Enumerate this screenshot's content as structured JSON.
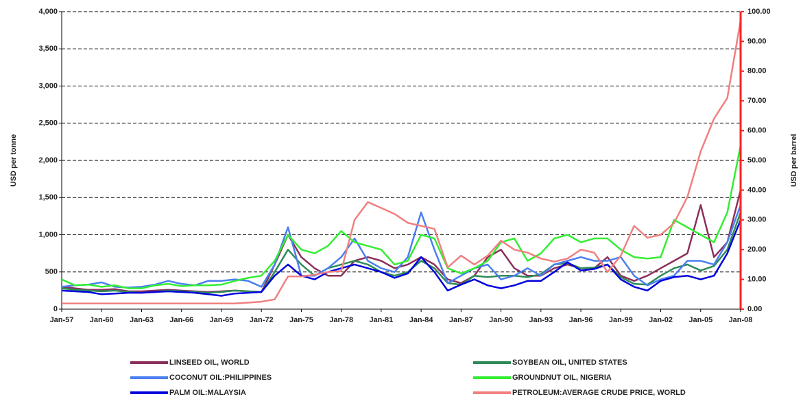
{
  "chart_data": {
    "type": "line",
    "ylabel": "USD per tonne",
    "y2label": "USD per barrel",
    "categories": [
      "Jan-57",
      null,
      null,
      "Jan-60",
      null,
      null,
      "Jan-63",
      null,
      null,
      "Jan-66",
      null,
      null,
      "Jan-69",
      null,
      null,
      "Jan-72",
      null,
      null,
      "Jan-75",
      null,
      null,
      "Jan-78",
      null,
      null,
      "Jan-81",
      null,
      null,
      "Jan-84",
      null,
      null,
      "Jan-87",
      null,
      null,
      "Jan-90",
      null,
      null,
      "Jan-93",
      null,
      null,
      "Jan-96",
      null,
      null,
      "Jan-99",
      null,
      null,
      "Jan-02",
      null,
      null,
      "Jan-05",
      null,
      null,
      "Jan-08"
    ],
    "ylim": [
      0,
      4000
    ],
    "yticks": [
      0,
      500,
      {
        "value": 1000,
        "label": "1,000"
      },
      {
        "value": 1500,
        "label": "1,500"
      },
      {
        "value": 2000,
        "label": "2,000"
      },
      {
        "value": 2500,
        "label": "2,500"
      },
      {
        "value": 3000,
        "label": "3,000"
      },
      {
        "value": 3500,
        "label": "3,500"
      },
      {
        "value": 4000,
        "label": "4,000"
      }
    ],
    "y2lim": [
      0,
      100
    ],
    "y2ticks": [
      {
        "value": 0,
        "label": "0.00"
      },
      {
        "value": 10,
        "label": "10.00"
      },
      {
        "value": 20,
        "label": "20.00"
      },
      {
        "value": 30,
        "label": "30.00"
      },
      {
        "value": 40,
        "label": "40.00"
      },
      {
        "value": 50,
        "label": "50.00"
      },
      {
        "value": 60,
        "label": "60.00"
      },
      {
        "value": 70,
        "label": "70.00"
      },
      {
        "value": 80,
        "label": "80.00"
      },
      {
        "value": 90,
        "label": "90.00"
      },
      {
        "value": 100,
        "label": "100.00"
      }
    ],
    "y2color": "#ff2020",
    "grid": true,
    "legend": "bottom",
    "series": [
      {
        "name": "LINSEED OIL, WORLD",
        "color": "#8b2f5a",
        "values": [
          300,
          280,
          260,
          260,
          270,
          240,
          240,
          250,
          260,
          250,
          240,
          230,
          240,
          250,
          240,
          230,
          600,
          1000,
          700,
          550,
          450,
          450,
          650,
          700,
          650,
          550,
          600,
          700,
          600,
          400,
          350,
          450,
          700,
          800,
          550,
          450,
          450,
          550,
          600,
          550,
          550,
          700,
          450,
          380,
          450,
          550,
          650,
          750,
          1400,
          700,
          900,
          1600
        ]
      },
      {
        "name": "SOYBEAN OIL, UNITED STATES",
        "color": "#2e8b57",
        "values": [
          280,
          260,
          250,
          240,
          250,
          230,
          220,
          230,
          250,
          240,
          230,
          220,
          230,
          250,
          240,
          230,
          500,
          800,
          600,
          450,
          550,
          600,
          650,
          600,
          500,
          450,
          500,
          650,
          550,
          350,
          330,
          450,
          430,
          450,
          450,
          430,
          470,
          600,
          620,
          550,
          560,
          600,
          430,
          340,
          330,
          450,
          550,
          600,
          520,
          580,
          800,
          1300
        ]
      },
      {
        "name": "COCONUT OIL:PHILIPPINES",
        "color": "#4a7ff0",
        "values": [
          300,
          320,
          330,
          360,
          300,
          290,
          300,
          330,
          380,
          340,
          320,
          380,
          380,
          400,
          380,
          300,
          600,
          1100,
          450,
          450,
          550,
          700,
          950,
          650,
          550,
          500,
          700,
          1300,
          800,
          350,
          450,
          550,
          600,
          400,
          450,
          550,
          450,
          600,
          650,
          700,
          650,
          650,
          700,
          450,
          320,
          400,
          450,
          650,
          650,
          600,
          900,
          1400
        ]
      },
      {
        "name": "GROUNDNUT OIL, NIGERIA",
        "color": "#33ee33",
        "values": [
          400,
          320,
          330,
          300,
          320,
          280,
          280,
          320,
          340,
          310,
          320,
          320,
          330,
          380,
          420,
          450,
          650,
          1000,
          800,
          750,
          850,
          1050,
          900,
          850,
          800,
          600,
          650,
          1000,
          950,
          550,
          480,
          550,
          650,
          900,
          950,
          650,
          750,
          950,
          1000,
          900,
          950,
          950,
          800,
          700,
          680,
          700,
          1200,
          1100,
          1000,
          900,
          1300,
          2200
        ]
      },
      {
        "name": "PALM OIL:MALAYSIA",
        "color": "#0000dd",
        "values": [
          250,
          240,
          230,
          200,
          210,
          220,
          220,
          230,
          240,
          230,
          220,
          200,
          180,
          210,
          220,
          230,
          450,
          600,
          450,
          400,
          500,
          550,
          600,
          550,
          500,
          420,
          480,
          700,
          500,
          250,
          330,
          400,
          320,
          280,
          320,
          380,
          380,
          500,
          630,
          520,
          540,
          600,
          400,
          300,
          250,
          380,
          430,
          450,
          400,
          450,
          750,
          1200
        ]
      },
      {
        "name": "PETROLEUM:AVERAGE CRUDE PRICE, WORLD",
        "color": "#f08080",
        "axis": "y2",
        "values": [
          1.9,
          1.9,
          1.9,
          1.9,
          1.9,
          1.9,
          1.9,
          1.9,
          1.9,
          1.9,
          1.9,
          1.9,
          1.9,
          1.9,
          2.2,
          2.5,
          3.3,
          11,
          11,
          11.6,
          12.5,
          12.8,
          30,
          36,
          34,
          32,
          29,
          28,
          27,
          14,
          18,
          15,
          18,
          23,
          20,
          19,
          17,
          16,
          17,
          20,
          19,
          12.5,
          18,
          28,
          24,
          25,
          28.9,
          37.7,
          53,
          64,
          71,
          97
        ]
      }
    ]
  }
}
